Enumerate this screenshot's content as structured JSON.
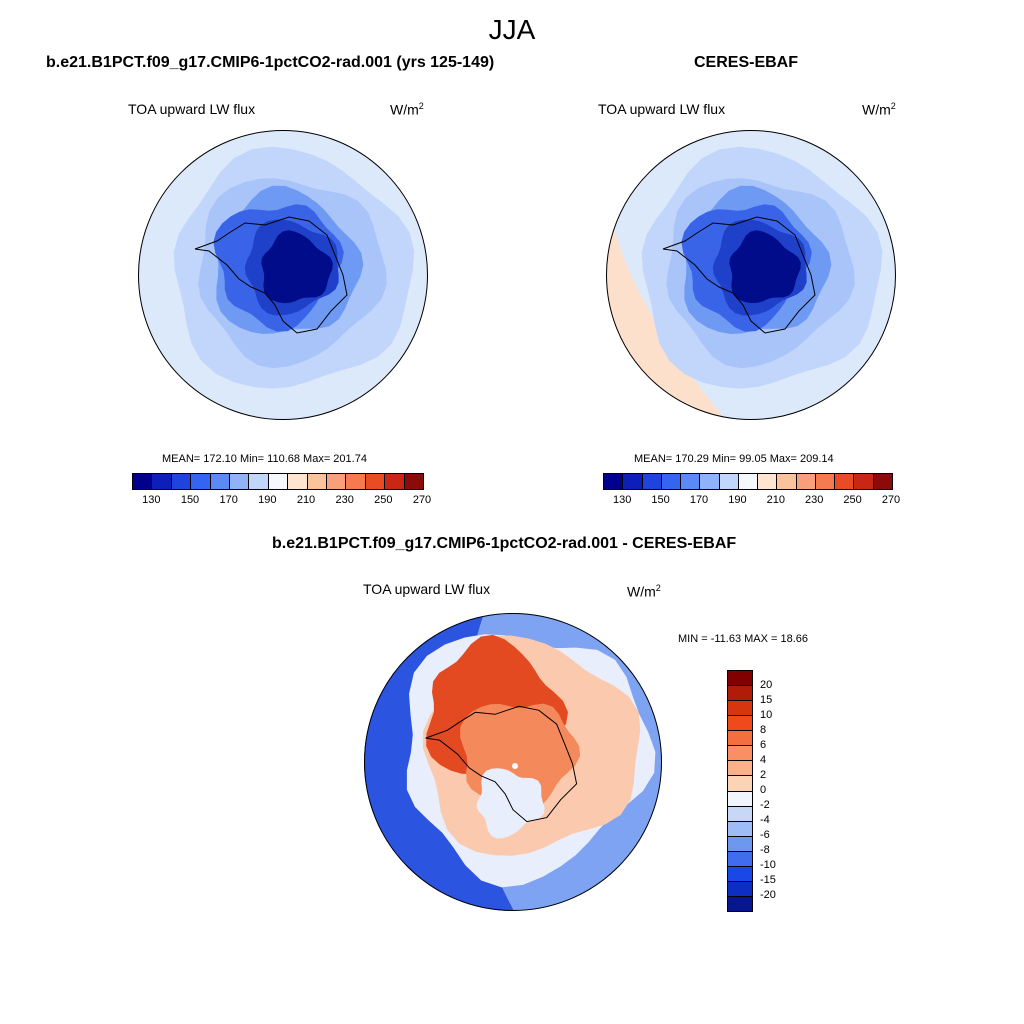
{
  "season": "JJA",
  "units_base": "W/m",
  "units_exp": "2",
  "panels": {
    "model": {
      "title": "b.e21.B1PCT.f09_g17.CMIP6-1pctCO2-rad.001 (yrs 125-149)",
      "field": "TOA upward LW flux",
      "stats": "MEAN= 172.10  Min= 110.68  Max= 201.74"
    },
    "obs": {
      "title": "CERES-EBAF",
      "field": "TOA upward LW flux",
      "stats": "MEAN= 170.29  Min=  99.05  Max= 209.14"
    },
    "diff": {
      "title": "b.e21.B1PCT.f09_g17.CMIP6-1pctCO2-rad.001 - CERES-EBAF",
      "field": "TOA upward LW flux",
      "stats": "MIN = -11.63 MAX =  18.66"
    }
  },
  "colorbar_main": {
    "colors": [
      "#00008c",
      "#0d1fb8",
      "#1f44dd",
      "#3365f0",
      "#5a8af6",
      "#8fb3f9",
      "#c2d6fc",
      "#f5f9ff",
      "#ffe4cf",
      "#fcc29b",
      "#f9a07a",
      "#f47a52",
      "#e94b25",
      "#c82813",
      "#8b0a0a"
    ],
    "tick_labels": [
      "130",
      "150",
      "170",
      "190",
      "210",
      "230",
      "250",
      "270"
    ]
  },
  "colorbar_diff": {
    "colors": [
      "#800000",
      "#b01c08",
      "#d6350f",
      "#ef4a1c",
      "#f56e3f",
      "#f98f62",
      "#fbb08a",
      "#fdd3b6",
      "#f1f5fd",
      "#c7d8f7",
      "#9ebcf5",
      "#6e97f0",
      "#3f6ded",
      "#1a48e6",
      "#0d2ec0",
      "#06168e"
    ],
    "tick_labels": [
      "20",
      "15",
      "10",
      "8",
      "6",
      "4",
      "2",
      "0",
      "-2",
      "-4",
      "-6",
      "-8",
      "-10",
      "-15",
      "-20"
    ]
  },
  "map_colors": {
    "ocean_outer": "#dce9fb",
    "ocean_mid": "#c2d6fc",
    "ring_mid": "#a9c4f9",
    "ring_inner": "#6f9af4",
    "coast_blue": "#3a64e8",
    "ice_mid": "#1f40c8",
    "ice_core": "#000c8a",
    "warm_edge": "#fde0cc",
    "diff_blue_dark": "#2b55e0",
    "diff_blue_mid": "#7ea3f2",
    "diff_light": "#e8eefb",
    "diff_peach": "#fbc9ad",
    "diff_orange": "#f48a5b",
    "diff_red": "#e34a22"
  }
}
